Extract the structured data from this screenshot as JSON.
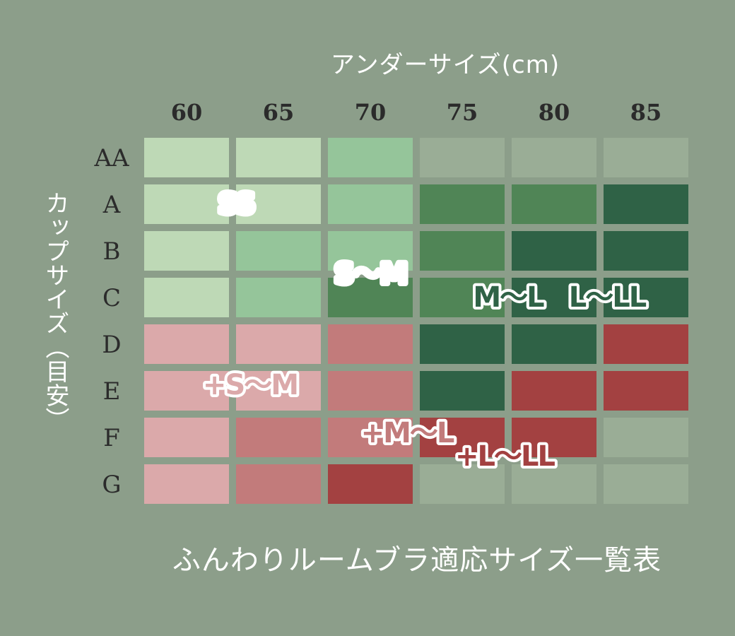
{
  "chart_data": {
    "type": "heatmap",
    "title": "ふんわりルームブラ適応サイズ一覧表",
    "xlabel": "アンダーサイズ(cm)",
    "ylabel": "カップサイズ（目安）",
    "x_categories": [
      "60",
      "65",
      "70",
      "75",
      "80",
      "85"
    ],
    "y_categories": [
      "AA",
      "A",
      "B",
      "C",
      "D",
      "E",
      "F",
      "G"
    ],
    "legend": [
      {
        "key": "SS",
        "label": "SS",
        "color": "#bed9b6"
      },
      {
        "key": "SM",
        "label": "S〜M",
        "color": "#95c59a"
      },
      {
        "key": "ML",
        "label": "M〜L",
        "color": "#508556"
      },
      {
        "key": "LLL",
        "label": "L〜LL",
        "color": "#2f6246"
      },
      {
        "key": "pSM",
        "label": "+S〜M",
        "color": "#dba9aa"
      },
      {
        "key": "pML",
        "label": "+M〜L",
        "color": "#c27b7b"
      },
      {
        "key": "pLLL",
        "label": "+L〜LL",
        "color": "#a34141"
      },
      {
        "key": "none",
        "label": "",
        "color": "#9aad96"
      }
    ],
    "grid": [
      [
        "SS",
        "SS",
        "SM",
        "none",
        "none",
        "none"
      ],
      [
        "SS",
        "SS",
        "SM",
        "ML",
        "ML",
        "LLL"
      ],
      [
        "SS",
        "SM",
        "SM",
        "ML",
        "LLL",
        "LLL"
      ],
      [
        "SS",
        "SM",
        "ML",
        "ML",
        "LLL",
        "LLL"
      ],
      [
        "pSM",
        "pSM",
        "pML",
        "LLL",
        "LLL",
        "pLLL"
      ],
      [
        "pSM",
        "pSM",
        "pML",
        "LLL",
        "pLLL",
        "pLLL"
      ],
      [
        "pSM",
        "pML",
        "pML",
        "pLLL",
        "pLLL",
        "none"
      ],
      [
        "pSM",
        "pML",
        "pLLL",
        "none",
        "none",
        "none"
      ]
    ],
    "annotations": [
      {
        "key": "SS",
        "label": "SS",
        "col": 1.0,
        "row": 1.0,
        "text_color": "#ffffff",
        "stroke": "#ffffff"
      },
      {
        "key": "SM",
        "label": "S〜M",
        "col": 2.0,
        "row": 2.5,
        "text_color": "#ffffff",
        "stroke": "#ffffff"
      },
      {
        "key": "ML",
        "label": "M〜L",
        "col": 3.5,
        "row": 3.0,
        "text_color": "#2f6246",
        "stroke": "#ffffff"
      },
      {
        "key": "LLL",
        "label": "L〜LL",
        "col": 5.0,
        "row": 3.0,
        "text_color": "#2f6246",
        "stroke": "#ffffff"
      },
      {
        "key": "pSM",
        "label": "+S〜M",
        "col": 1.0,
        "row": 5.0,
        "text_color": "#dba9aa",
        "stroke": "#ffffff"
      },
      {
        "key": "pML",
        "label": "+M〜L",
        "col": 2.4,
        "row": 6.0,
        "text_color": "#c27b7b",
        "stroke": "#ffffff"
      },
      {
        "key": "pLLL",
        "label": "+L〜LL",
        "col": 4.0,
        "row": 6.5,
        "text_color": "#a34141",
        "stroke": "#ffffff"
      }
    ]
  }
}
